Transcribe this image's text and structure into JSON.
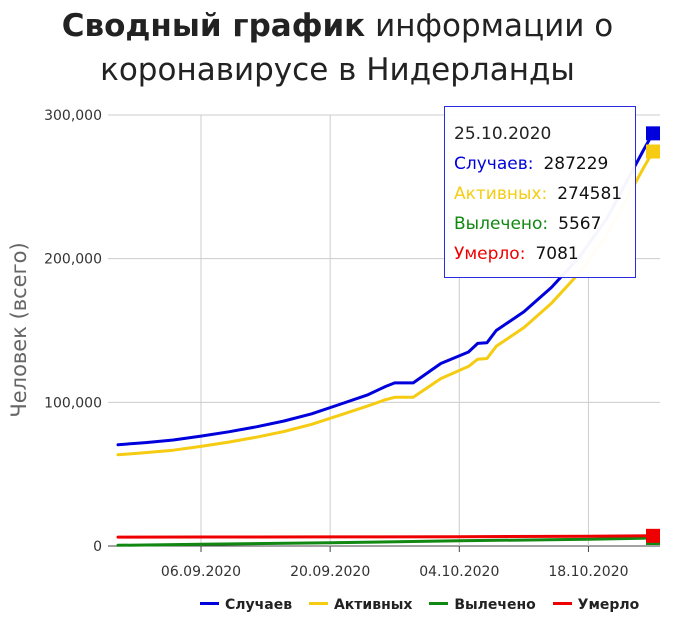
{
  "title": {
    "bold": "Сводный график",
    "rest": " информации о коронавирусе в Нидерланды"
  },
  "chart_data": {
    "type": "line",
    "ylabel": "Человек (всего)",
    "xlabel": "",
    "ylim": [
      0,
      300000
    ],
    "yticks": [
      {
        "value": 0,
        "label": "0"
      },
      {
        "value": 100000,
        "label": "100,000"
      },
      {
        "value": 200000,
        "label": "200,000"
      },
      {
        "value": 300000,
        "label": "300,000"
      }
    ],
    "xlim": [
      "2020-08-28",
      "2020-10-25"
    ],
    "xticks": [
      {
        "date": "2020-09-06",
        "label": "06.09.2020"
      },
      {
        "date": "2020-09-20",
        "label": "20.09.2020"
      },
      {
        "date": "2020-10-04",
        "label": "04.10.2020"
      },
      {
        "date": "2020-10-18",
        "label": "18.10.2020"
      }
    ],
    "grid": true,
    "legend_position": "bottom",
    "series": [
      {
        "name": "Случаев",
        "color": "#0000dd",
        "points": [
          [
            "2020-08-28",
            70500
          ],
          [
            "2020-08-31",
            72000
          ],
          [
            "2020-09-03",
            73800
          ],
          [
            "2020-09-06",
            76500
          ],
          [
            "2020-09-09",
            79500
          ],
          [
            "2020-09-12",
            83000
          ],
          [
            "2020-09-15",
            87000
          ],
          [
            "2020-09-18",
            92000
          ],
          [
            "2020-09-21",
            98500
          ],
          [
            "2020-09-24",
            105000
          ],
          [
            "2020-09-26",
            111000
          ],
          [
            "2020-09-27",
            113500
          ],
          [
            "2020-09-29",
            113500
          ],
          [
            "2020-10-02",
            127000
          ],
          [
            "2020-10-05",
            135000
          ],
          [
            "2020-10-06",
            141000
          ],
          [
            "2020-10-07",
            141500
          ],
          [
            "2020-10-08",
            150000
          ],
          [
            "2020-10-11",
            163000
          ],
          [
            "2020-10-14",
            180000
          ],
          [
            "2020-10-17",
            201000
          ],
          [
            "2020-10-20",
            228000
          ],
          [
            "2020-10-22",
            252000
          ],
          [
            "2020-10-24",
            276000
          ],
          [
            "2020-10-25",
            287229
          ]
        ]
      },
      {
        "name": "Активных",
        "color": "#f5cc12",
        "points": [
          [
            "2020-08-28",
            63500
          ],
          [
            "2020-08-31",
            65000
          ],
          [
            "2020-09-03",
            66700
          ],
          [
            "2020-09-06",
            69300
          ],
          [
            "2020-09-09",
            72300
          ],
          [
            "2020-09-12",
            75700
          ],
          [
            "2020-09-15",
            79700
          ],
          [
            "2020-09-18",
            84700
          ],
          [
            "2020-09-21",
            91000
          ],
          [
            "2020-09-24",
            97300
          ],
          [
            "2020-09-26",
            101800
          ],
          [
            "2020-09-27",
            103500
          ],
          [
            "2020-09-29",
            103500
          ],
          [
            "2020-10-02",
            116500
          ],
          [
            "2020-10-05",
            125000
          ],
          [
            "2020-10-06",
            130000
          ],
          [
            "2020-10-07",
            130500
          ],
          [
            "2020-10-08",
            139000
          ],
          [
            "2020-10-11",
            152000
          ],
          [
            "2020-10-14",
            169000
          ],
          [
            "2020-10-17",
            190000
          ],
          [
            "2020-10-20",
            216000
          ],
          [
            "2020-10-22",
            240000
          ],
          [
            "2020-10-24",
            263500
          ],
          [
            "2020-10-25",
            274581
          ]
        ]
      },
      {
        "name": "Вылечено",
        "color": "#118811",
        "points": [
          [
            "2020-08-28",
            500
          ],
          [
            "2020-09-06",
            1200
          ],
          [
            "2020-09-20",
            2300
          ],
          [
            "2020-10-04",
            3600
          ],
          [
            "2020-10-18",
            4700
          ],
          [
            "2020-10-25",
            5567
          ]
        ]
      },
      {
        "name": "Умерло",
        "color": "#ee0000",
        "points": [
          [
            "2020-08-28",
            6200
          ],
          [
            "2020-09-06",
            6250
          ],
          [
            "2020-09-20",
            6300
          ],
          [
            "2020-10-04",
            6500
          ],
          [
            "2020-10-18",
            6800
          ],
          [
            "2020-10-25",
            7081
          ]
        ]
      }
    ]
  },
  "tooltip": {
    "date": "25.10.2020",
    "rows": [
      {
        "label": "Случаев:",
        "value": "287229",
        "color": "#0000dd"
      },
      {
        "label": "Активных:",
        "value": "274581",
        "color": "#f5cc12"
      },
      {
        "label": "Вылечено:",
        "value": "5567",
        "color": "#118811"
      },
      {
        "label": "Умерло:",
        "value": "7081",
        "color": "#ee0000"
      }
    ]
  }
}
